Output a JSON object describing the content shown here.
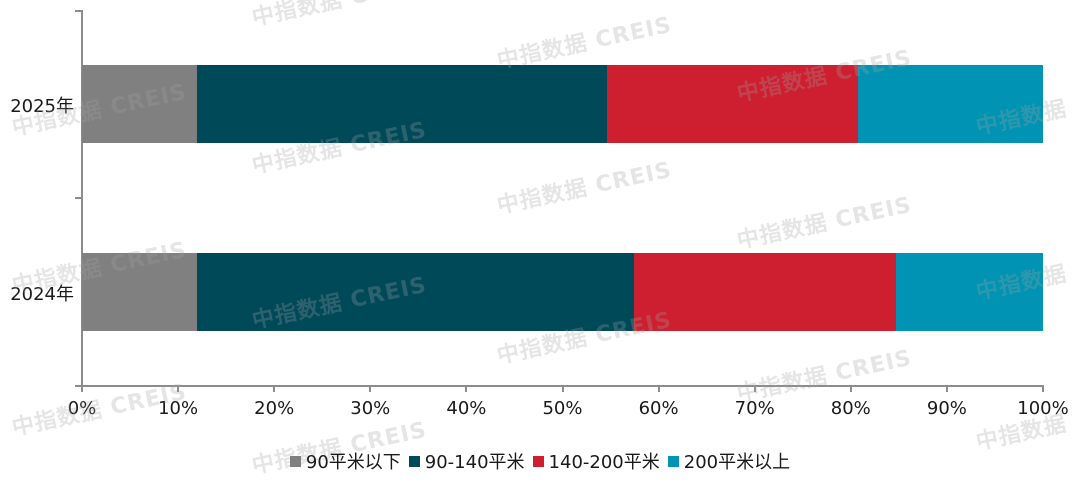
{
  "chart_data": {
    "type": "bar",
    "orientation": "horizontal",
    "stacked": true,
    "percent": true,
    "title": "",
    "xlabel": "",
    "ylabel": "",
    "xlim": [
      0,
      100
    ],
    "x_ticks": [
      "0%",
      "10%",
      "20%",
      "30%",
      "40%",
      "50%",
      "60%",
      "70%",
      "80%",
      "90%",
      "100%"
    ],
    "categories": [
      "2025年",
      "2024年"
    ],
    "series": [
      {
        "name": "90平米以下",
        "color": "#808080",
        "values": [
          12.0,
          12.0
        ]
      },
      {
        "name": "90-140平米",
        "color": "#004959",
        "values": [
          42.6,
          45.4
        ]
      },
      {
        "name": "140-200平米",
        "color": "#cd1f30",
        "values": [
          26.1,
          27.3
        ]
      },
      {
        "name": "200平米以上",
        "color": "#0093b3",
        "values": [
          19.3,
          15.3
        ]
      }
    ],
    "legend_position": "bottom",
    "grid": false
  },
  "watermark": {
    "text_cn": "中指数据",
    "text_en": "CREIS"
  }
}
